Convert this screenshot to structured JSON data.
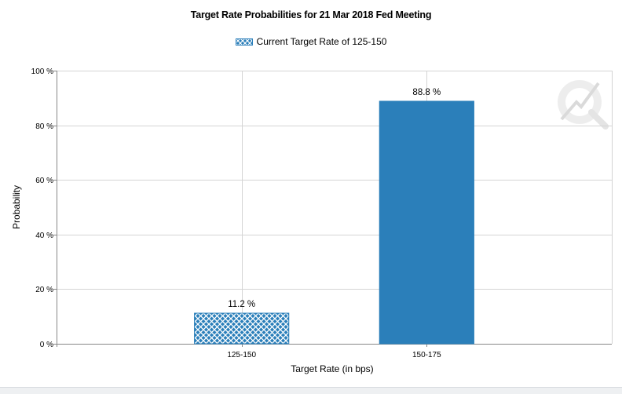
{
  "chart_data": {
    "type": "bar",
    "title": "Target Rate Probabilities for 21 Mar 2018 Fed Meeting",
    "xlabel": "Target Rate (in bps)",
    "ylabel": "Probability",
    "categories": [
      "125-150",
      "150-175"
    ],
    "values": [
      11.2,
      88.8
    ],
    "value_labels": [
      "11.2 %",
      "88.8 %"
    ],
    "ylim": [
      0,
      100
    ],
    "yticks": [
      0,
      20,
      40,
      60,
      80,
      100
    ],
    "ytick_labels": [
      "0 %",
      "20 %",
      "40 %",
      "60 %",
      "80 %",
      "100 %"
    ],
    "legend": [
      {
        "label": "Current Target Rate of 125-150",
        "category": "125-150"
      }
    ],
    "legend_position": "top-center",
    "grid": true,
    "colors": {
      "bar": "#2b7fba",
      "hatch_bg": "#ffffff",
      "grid": "#d4d4d4",
      "axis": "#888888"
    }
  }
}
